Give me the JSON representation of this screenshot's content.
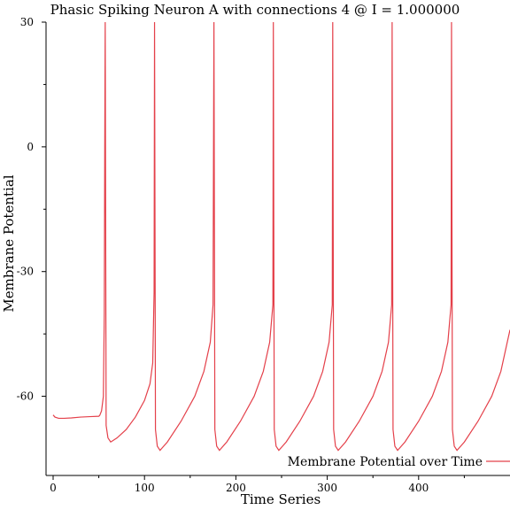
{
  "chart_data": {
    "type": "line",
    "title": "Phasic Spiking Neuron A with connections 4 @ I = 1.000000",
    "xlabel": "Time Series",
    "ylabel": "Membrane Potential",
    "xlim": [
      0,
      500
    ],
    "ylim": [
      -75,
      30
    ],
    "x_ticks": [
      0,
      100,
      200,
      300,
      400
    ],
    "x_tick_labels": [
      "0",
      "100",
      "200",
      "300",
      "400"
    ],
    "x_minor_ticks": [
      50,
      150,
      250,
      350,
      450
    ],
    "y_ticks": [
      30,
      0,
      -30,
      -60
    ],
    "y_tick_labels": [
      "30",
      "0",
      "-30",
      "-60"
    ],
    "y_minor_ticks": [
      15,
      -15,
      -45
    ],
    "grid": false,
    "legend_position": "bottom-right",
    "series": [
      {
        "name": "Membrane Potential over Time",
        "color": "#e4404a",
        "x": [
          0,
          2,
          6,
          12,
          20,
          30,
          40,
          50,
          51,
          53,
          55,
          56,
          56.5,
          57,
          58,
          60,
          63,
          70,
          80,
          90,
          100,
          106,
          109,
          110.5,
          111,
          112,
          114,
          117,
          125,
          140,
          155,
          165,
          172,
          175,
          176,
          177,
          179,
          182,
          190,
          205,
          220,
          230,
          237,
          240.5,
          241,
          242,
          244,
          247,
          255,
          270,
          285,
          295,
          302,
          305.5,
          306,
          307,
          309,
          312,
          320,
          335,
          350,
          360,
          367,
          370.5,
          371,
          372,
          374,
          377,
          385,
          400,
          415,
          425,
          432,
          435.5,
          436,
          437,
          439,
          442,
          450,
          465,
          480,
          490,
          497,
          500
        ],
        "y": [
          -64.5,
          -65.0,
          -65.3,
          -65.3,
          -65.2,
          -65.0,
          -64.9,
          -64.8,
          -64.6,
          -63.5,
          -60.0,
          -40.0,
          0.0,
          30.0,
          -67.0,
          -70.0,
          -71.0,
          -70.0,
          -68.0,
          -65.0,
          -61.0,
          -57.0,
          -52.0,
          -35.0,
          30.0,
          -68.0,
          -72.0,
          -73.0,
          -71.0,
          -66.0,
          -60.0,
          -54.0,
          -47.0,
          -38.0,
          30.0,
          -68.0,
          -72.0,
          -73.0,
          -71.0,
          -66.0,
          -60.0,
          -54.0,
          -47.0,
          -38.0,
          30.0,
          -68.0,
          -72.0,
          -73.0,
          -71.0,
          -66.0,
          -60.0,
          -54.0,
          -47.0,
          -38.0,
          30.0,
          -68.0,
          -72.0,
          -73.0,
          -71.0,
          -66.0,
          -60.0,
          -54.0,
          -47.0,
          -38.0,
          30.0,
          -68.0,
          -72.0,
          -73.0,
          -71.0,
          -66.0,
          -60.0,
          -54.0,
          -47.0,
          -38.0,
          30.0,
          -68.0,
          -72.0,
          -73.0,
          -71.0,
          -66.0,
          -60.0,
          -54.0,
          -47.0,
          -44.0
        ]
      }
    ]
  }
}
